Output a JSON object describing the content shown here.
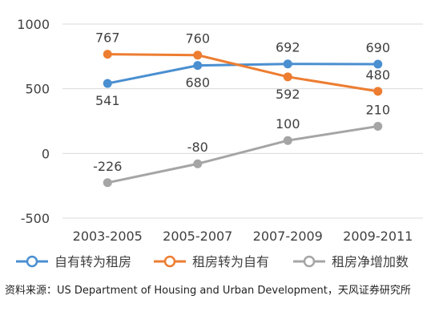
{
  "chart_data": {
    "type": "line",
    "categories": [
      "2003-2005",
      "2005-2007",
      "2007-2009",
      "2009-2011"
    ],
    "ylim": [
      -500,
      1000
    ],
    "yticks": [
      -500,
      0,
      500,
      1000
    ],
    "ytick_labels": [
      "-500",
      "0",
      "500",
      "1000"
    ],
    "grid": true,
    "legend_position": "bottom",
    "series": [
      {
        "name": "自有转为租房",
        "color": "#4a8fd0",
        "values": [
          541,
          680,
          692,
          690
        ],
        "labels": [
          "541",
          "680",
          "692",
          "690"
        ],
        "label_pos": [
          "below",
          "below",
          "above",
          "above"
        ]
      },
      {
        "name": "租房转为自有",
        "color": "#ed7d31",
        "values": [
          767,
          760,
          592,
          480
        ],
        "labels": [
          "767",
          "760",
          "592",
          "480"
        ],
        "label_pos": [
          "above",
          "above",
          "below",
          "above"
        ]
      },
      {
        "name": "租房净增加数",
        "color": "#a5a5a5",
        "values": [
          -226,
          -80,
          100,
          210
        ],
        "labels": [
          "-226",
          "-80",
          "100",
          "210"
        ],
        "label_pos": [
          "above",
          "above",
          "above",
          "above"
        ]
      }
    ]
  },
  "source_text": "资料来源：US Department of Housing and Urban Development，天风证券研究所"
}
